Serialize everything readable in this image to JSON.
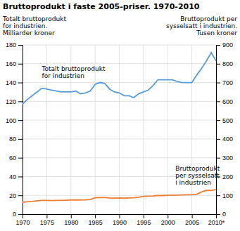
{
  "chart_data": {
    "type": "line",
    "title": "Bruttoprodukt i faste 2005-priser. 1970-2010",
    "y_label": "Totalt bruttoprodukt\nfor industrien.\nMilliarder kroner",
    "y2_label": "Bruttoprodukt per\nsysselsatt i industrien.\nTusen kroner",
    "annotations": [
      "Totalt bruttoprodukt\nfor industrien",
      "Bruttoprodukt\nper sysselsatt\ni industrien"
    ],
    "x": [
      1970,
      1971,
      1972,
      1973,
      1974,
      1975,
      1976,
      1977,
      1978,
      1979,
      1980,
      1981,
      1982,
      1983,
      1984,
      1985,
      1986,
      1987,
      1988,
      1989,
      1990,
      1991,
      1992,
      1993,
      1994,
      1995,
      1996,
      1997,
      1998,
      1999,
      2000,
      2001,
      2002,
      2003,
      2004,
      2005,
      2006,
      2007,
      2008,
      2009,
      2010
    ],
    "series": [
      {
        "color": "#5B9BD5",
        "values": [
          117,
          122,
          126,
          130,
          134,
          133,
          132,
          131,
          130,
          130,
          130,
          131,
          128,
          129,
          131,
          138,
          140,
          139,
          133,
          130,
          129,
          126,
          126,
          124,
          128,
          130,
          132,
          137,
          143,
          143,
          143,
          143,
          141,
          140,
          140,
          140,
          148,
          155,
          163,
          172,
          163
        ]
      },
      {
        "color": "#ED7D31",
        "axis": "y2",
        "values": [
          63,
          66,
          68,
          71,
          73,
          73,
          72,
          73,
          73,
          74,
          75,
          76,
          75,
          76,
          78,
          87,
          88,
          88,
          86,
          85,
          86,
          85,
          86,
          87,
          90,
          95,
          96,
          97,
          99,
          99,
          100,
          100,
          101,
          102,
          103,
          103,
          106,
          118,
          126,
          126,
          131
        ]
      }
    ],
    "xlim": [
      1970,
      2010
    ],
    "xticks": [
      1970,
      1975,
      1980,
      1985,
      1990,
      1995,
      2000,
      2005,
      {
        "value": 2010,
        "label": "2010*"
      }
    ],
    "ylim": [
      0,
      180
    ],
    "yticks": [
      0,
      20,
      40,
      60,
      80,
      100,
      120,
      140,
      160,
      180
    ],
    "y2lim": [
      0,
      900
    ],
    "y2ticks": [
      0,
      100,
      200,
      300,
      400,
      500,
      600,
      700,
      800,
      900
    ],
    "grid": true
  }
}
